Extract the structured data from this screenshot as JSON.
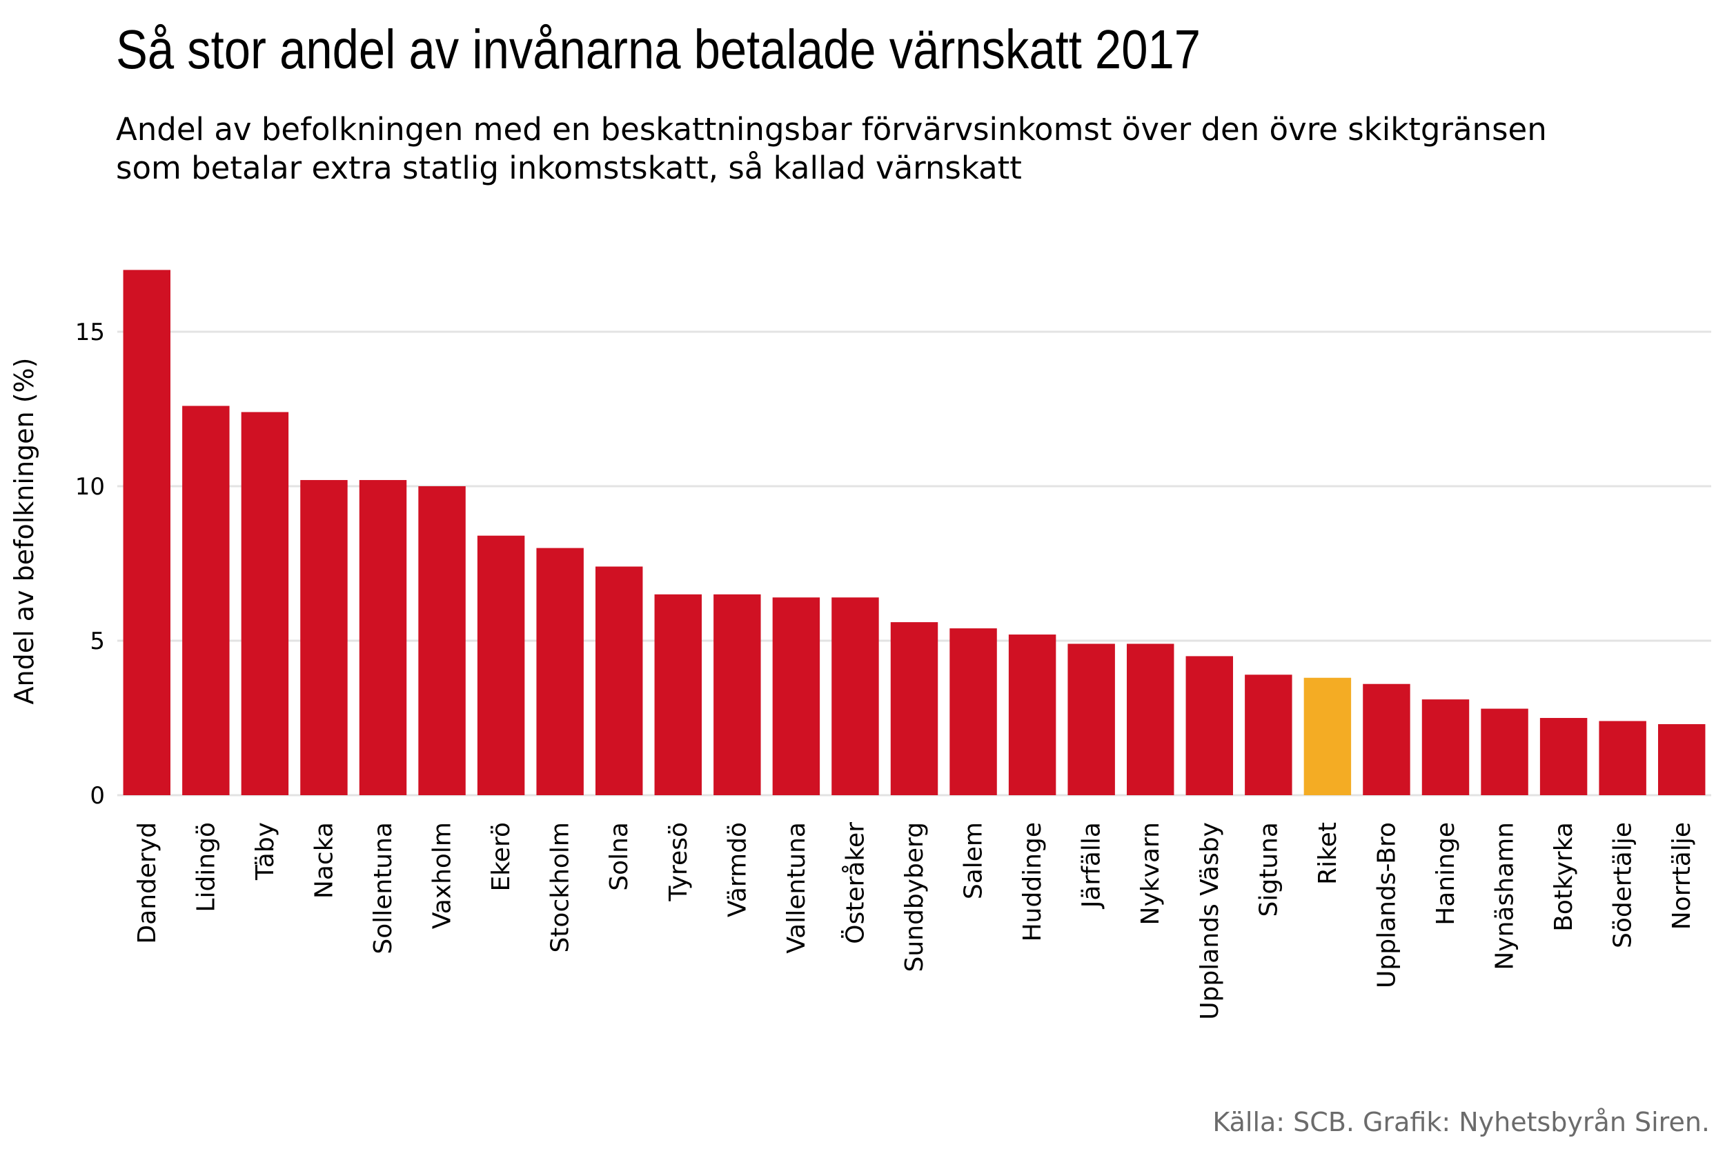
{
  "chart_data": {
    "type": "bar",
    "title": "Så stor andel av invånarna betalade värnskatt 2017",
    "subtitle_lines": [
      "Andel av befolkningen med en beskattningsbar förvärvsinkomst över den övre skiktgränsen",
      "som betalar extra statlig inkomstskatt, så kallad värnskatt"
    ],
    "xlabel": "",
    "ylabel": "Andel av befolkningen (%)",
    "ylim": [
      0,
      17
    ],
    "yticks": [
      0,
      5,
      10,
      15
    ],
    "grid": true,
    "categories": [
      "Danderyd",
      "Lidingö",
      "Täby",
      "Nacka",
      "Sollentuna",
      "Vaxholm",
      "Ekerö",
      "Stockholm",
      "Solna",
      "Tyresö",
      "Värmdö",
      "Vallentuna",
      "Österåker",
      "Sundbyberg",
      "Salem",
      "Huddinge",
      "Järfälla",
      "Nykvarn",
      "Upplands Väsby",
      "Sigtuna",
      "Riket",
      "Upplands-Bro",
      "Haninge",
      "Nynäshamn",
      "Botkyrka",
      "Södertälje",
      "Norrtälje"
    ],
    "values": [
      17.0,
      12.6,
      12.4,
      10.2,
      10.2,
      10.0,
      8.4,
      8.0,
      7.4,
      6.5,
      6.5,
      6.4,
      6.4,
      5.6,
      5.4,
      5.2,
      4.9,
      4.9,
      4.5,
      3.9,
      3.8,
      3.6,
      3.1,
      2.8,
      2.5,
      2.4,
      2.3
    ],
    "highlight_category": "Riket",
    "colors": {
      "bar": "#d01123",
      "highlight": "#f4ac24",
      "grid": "#e3e3e3"
    },
    "source": "Källa: SCB. Grafik: Nyhetsbyrån Siren."
  }
}
